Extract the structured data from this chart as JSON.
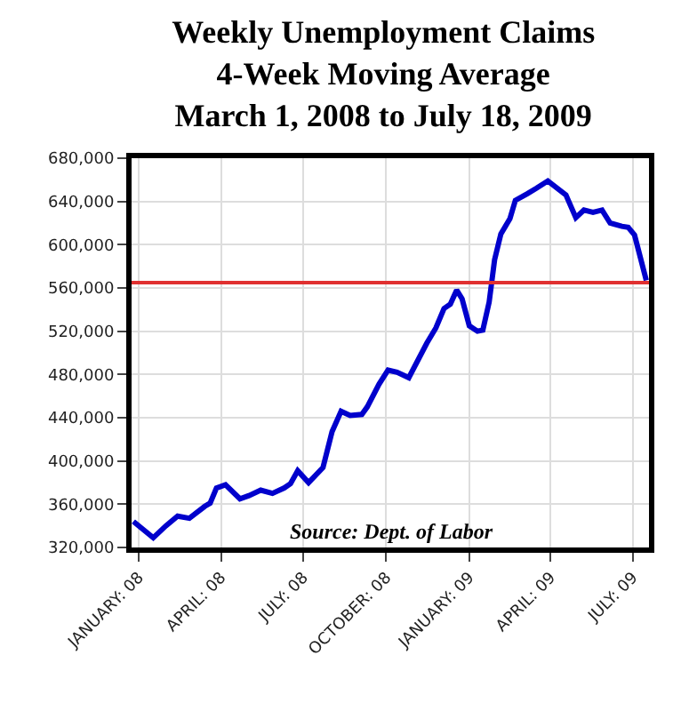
{
  "chart_data": {
    "type": "line",
    "title": "Weekly Unemployment Claims\n4-Week Moving Average\nMarch 1, 2008 to July 18, 2009",
    "x": [
      "2007-12-26",
      "2008-01-17",
      "2008-01-31",
      "2008-02-13",
      "2008-02-26",
      "2008-03-14",
      "2008-03-20",
      "2008-03-27",
      "2008-04-06",
      "2008-04-22",
      "2008-05-02",
      "2008-05-15",
      "2008-05-28",
      "2008-06-10",
      "2008-06-17",
      "2008-06-25",
      "2008-07-07",
      "2008-07-23",
      "2008-08-02",
      "2008-08-12",
      "2008-08-22",
      "2008-09-04",
      "2008-09-10",
      "2008-09-23",
      "2008-10-03",
      "2008-10-13",
      "2008-10-26",
      "2008-11-15",
      "2008-11-25",
      "2008-12-04",
      "2008-12-11",
      "2008-12-18",
      "2008-12-24",
      "2009-01-01",
      "2009-01-10",
      "2009-01-16",
      "2009-01-23",
      "2009-01-29",
      "2009-02-05",
      "2009-02-15",
      "2009-02-21",
      "2009-03-06",
      "2009-03-16",
      "2009-03-29",
      "2009-04-18",
      "2009-04-29",
      "2009-05-08",
      "2009-05-18",
      "2009-05-28",
      "2009-06-06",
      "2009-06-19",
      "2009-06-26",
      "2009-07-03",
      "2009-07-16"
    ],
    "series": [
      {
        "color": "#0000cc",
        "values": [
          344000,
          329000,
          340000,
          349000,
          347000,
          358000,
          361000,
          375000,
          378000,
          365000,
          368000,
          373000,
          370000,
          375000,
          379000,
          391000,
          380000,
          394000,
          427000,
          446000,
          442000,
          443000,
          450000,
          471000,
          484000,
          482000,
          477000,
          509000,
          523000,
          541000,
          545000,
          558000,
          550000,
          525000,
          520000,
          521000,
          547000,
          586000,
          610000,
          624000,
          641000,
          647000,
          652000,
          659000,
          646000,
          625000,
          632000,
          630000,
          632000,
          620000,
          617000,
          616000,
          609000,
          567000
        ]
      }
    ],
    "xlim": [
      "2007-12-24",
      "2009-07-19"
    ],
    "xticks": [
      {
        "value": "2008-01-01",
        "label": "JANUARY: 08"
      },
      {
        "value": "2008-04-01",
        "label": "APRIL: 08"
      },
      {
        "value": "2008-07-01",
        "label": "JULY: 08"
      },
      {
        "value": "2008-10-01",
        "label": "OCTOBER: 08"
      },
      {
        "value": "2009-01-01",
        "label": "JANUARY: 09"
      },
      {
        "value": "2009-04-01",
        "label": "APRIL: 09"
      },
      {
        "value": "2009-07-01",
        "label": "JULY: 09"
      }
    ],
    "ylim": [
      320000,
      680000
    ],
    "yticks": [
      {
        "value": 320000,
        "label": "320,000"
      },
      {
        "value": 360000,
        "label": "360,000"
      },
      {
        "value": 400000,
        "label": "400,000"
      },
      {
        "value": 440000,
        "label": "440,000"
      },
      {
        "value": 480000,
        "label": "480,000"
      },
      {
        "value": 520000,
        "label": "520,000"
      },
      {
        "value": 560000,
        "label": "560,000"
      },
      {
        "value": 600000,
        "label": "600,000"
      },
      {
        "value": 640000,
        "label": "640,000"
      },
      {
        "value": 680000,
        "label": "680,000"
      }
    ],
    "ref_lines": [
      {
        "axis": "y",
        "value": 565000,
        "color": "#e03030"
      }
    ],
    "annotations": [
      "Source: Dept. of Labor"
    ],
    "grid": true,
    "marker": "none",
    "line_style": "solid"
  }
}
